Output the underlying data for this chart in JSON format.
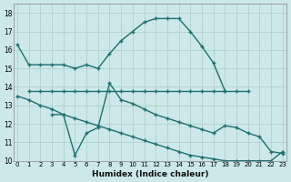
{
  "background_color": "#cce8e8",
  "grid_color": "#aacccc",
  "line_color": "#1f7070",
  "xlabel": "Humidex (Indice chaleur)",
  "xlim_min": -0.3,
  "xlim_max": 23.3,
  "ylim_min": 10,
  "ylim_max": 18.5,
  "line1_x": [
    0,
    1,
    2,
    3,
    4,
    5,
    6,
    7,
    8,
    9,
    10,
    11,
    12,
    13,
    14,
    15,
    16,
    17,
    18
  ],
  "line1_y": [
    16.3,
    15.2,
    15.2,
    15.2,
    15.2,
    15.0,
    15.2,
    15.0,
    15.8,
    16.5,
    17.0,
    17.5,
    17.7,
    17.7,
    17.7,
    17.0,
    16.2,
    15.3,
    13.8
  ],
  "line2_x": [
    1,
    2,
    3,
    4,
    5,
    6,
    7,
    8,
    9,
    10,
    11,
    12,
    13,
    14,
    15,
    16,
    17,
    18,
    19,
    20
  ],
  "line2_y": [
    13.8,
    13.8,
    13.8,
    13.8,
    13.8,
    13.8,
    13.8,
    13.8,
    13.8,
    13.8,
    13.8,
    13.8,
    13.8,
    13.8,
    13.8,
    13.8,
    13.8,
    13.8,
    13.8,
    13.8
  ],
  "line3_x": [
    0,
    1,
    2,
    3,
    4,
    5,
    6,
    7,
    8,
    9,
    10,
    11,
    12,
    13,
    14,
    15,
    16,
    17,
    18,
    19,
    20,
    21,
    22,
    23
  ],
  "line3_y": [
    13.5,
    13.3,
    13.0,
    12.8,
    12.5,
    12.3,
    12.1,
    11.9,
    11.7,
    11.5,
    11.3,
    11.1,
    10.9,
    10.7,
    10.5,
    10.3,
    10.2,
    10.1,
    10.0,
    10.0,
    10.0,
    10.0,
    10.0,
    10.5
  ],
  "line4_x": [
    3,
    4,
    5,
    6,
    7,
    8,
    9,
    10,
    11,
    12,
    13,
    14,
    15,
    16,
    17,
    18,
    19,
    20,
    21,
    22,
    23
  ],
  "line4_y": [
    12.5,
    12.5,
    10.3,
    11.5,
    11.8,
    14.2,
    13.3,
    13.1,
    12.8,
    12.5,
    12.3,
    12.1,
    11.9,
    11.7,
    11.5,
    11.9,
    11.8,
    11.5,
    11.3,
    10.5,
    10.4
  ]
}
